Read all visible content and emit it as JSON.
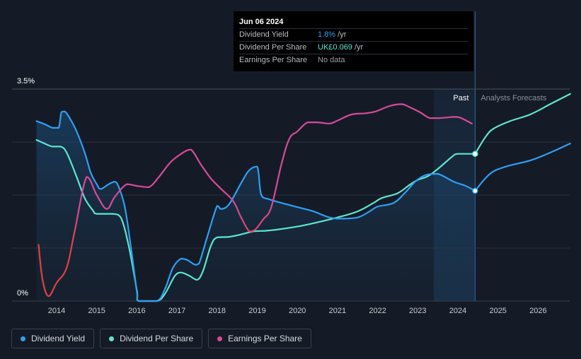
{
  "tooltip": {
    "date": "Jun 06 2024",
    "rows": [
      {
        "label": "Dividend Yield",
        "value": "1.8%",
        "unit": " /yr"
      },
      {
        "label": "Dividend Per Share",
        "value": "UK£0.069",
        "unit": " /yr"
      },
      {
        "label": "Earnings Per Share",
        "value": "No data",
        "unit": ""
      }
    ]
  },
  "legend": [
    {
      "label": "Dividend Yield",
      "color": "#2f9ff2"
    },
    {
      "label": "Dividend Per Share",
      "color": "#5de6cf"
    },
    {
      "label": "Earnings Per Share",
      "color": "#d64a9a"
    }
  ],
  "chart_data": {
    "type": "line",
    "y_top_label": "3.5%",
    "y_bottom_label": "0%",
    "ylim": [
      0,
      3.5
    ],
    "xlim": [
      2013.3,
      2026.8
    ],
    "x_ticks": [
      2014,
      2015,
      2016,
      2017,
      2018,
      2019,
      2020,
      2021,
      2022,
      2023,
      2024,
      2025,
      2026
    ],
    "past_label": "Past",
    "forecast_label": "Analysts Forecasts",
    "forecast_start": 2023.4,
    "cursor_x": 2024.43,
    "colors": {
      "yield": "#2f9ff2",
      "dps": "#5de6cf",
      "eps": "#d64a9a",
      "eps_low": "#e0403f"
    },
    "series": [
      {
        "name": "Dividend Yield",
        "key": "yield",
        "points": [
          [
            2013.5,
            2.97
          ],
          [
            2013.7,
            2.92
          ],
          [
            2013.9,
            2.86
          ],
          [
            2014.05,
            2.86
          ],
          [
            2014.12,
            3.12
          ],
          [
            2014.2,
            3.13
          ],
          [
            2014.3,
            3.05
          ],
          [
            2014.5,
            2.8
          ],
          [
            2014.7,
            2.45
          ],
          [
            2014.85,
            2.12
          ],
          [
            2015.0,
            1.93
          ],
          [
            2015.1,
            1.85
          ],
          [
            2015.3,
            1.93
          ],
          [
            2015.45,
            1.97
          ],
          [
            2015.55,
            1.88
          ],
          [
            2015.7,
            1.55
          ],
          [
            2015.85,
            0.9
          ],
          [
            2016.0,
            0.15
          ],
          [
            2016.05,
            0.0
          ],
          [
            2016.5,
            0.0
          ],
          [
            2016.7,
            0.2
          ],
          [
            2016.9,
            0.55
          ],
          [
            2017.1,
            0.7
          ],
          [
            2017.25,
            0.68
          ],
          [
            2017.45,
            0.6
          ],
          [
            2017.55,
            0.62
          ],
          [
            2017.75,
            1.05
          ],
          [
            2018.0,
            1.57
          ],
          [
            2018.1,
            1.52
          ],
          [
            2018.3,
            1.6
          ],
          [
            2018.6,
            1.95
          ],
          [
            2018.8,
            2.16
          ],
          [
            2019.0,
            2.22
          ],
          [
            2019.1,
            1.75
          ],
          [
            2019.3,
            1.68
          ],
          [
            2019.6,
            1.62
          ],
          [
            2020.0,
            1.55
          ],
          [
            2020.4,
            1.48
          ],
          [
            2020.8,
            1.38
          ],
          [
            2021.1,
            1.36
          ],
          [
            2021.5,
            1.38
          ],
          [
            2021.8,
            1.48
          ],
          [
            2022.0,
            1.56
          ],
          [
            2022.4,
            1.62
          ],
          [
            2022.7,
            1.8
          ],
          [
            2022.95,
            1.98
          ],
          [
            2023.2,
            2.08
          ],
          [
            2023.5,
            2.1
          ],
          [
            2023.9,
            1.97
          ],
          [
            2024.2,
            1.9
          ],
          [
            2024.43,
            1.82
          ]
        ]
      },
      {
        "name": "Dividend Yield (forecast)",
        "key": "yield",
        "forecast": true,
        "points": [
          [
            2024.43,
            1.82
          ],
          [
            2024.8,
            2.1
          ],
          [
            2025.2,
            2.22
          ],
          [
            2025.8,
            2.32
          ],
          [
            2026.3,
            2.45
          ],
          [
            2026.8,
            2.6
          ]
        ]
      },
      {
        "name": "Dividend Per Share",
        "key": "dps",
        "points": [
          [
            2013.5,
            2.66
          ],
          [
            2013.7,
            2.6
          ],
          [
            2013.9,
            2.55
          ],
          [
            2014.1,
            2.55
          ],
          [
            2014.25,
            2.45
          ],
          [
            2014.5,
            2.05
          ],
          [
            2014.7,
            1.7
          ],
          [
            2014.9,
            1.5
          ],
          [
            2015.0,
            1.44
          ],
          [
            2015.4,
            1.44
          ],
          [
            2015.6,
            1.38
          ],
          [
            2015.8,
            0.9
          ],
          [
            2016.0,
            0.18
          ],
          [
            2016.05,
            0.0
          ],
          [
            2016.5,
            0.0
          ],
          [
            2016.7,
            0.12
          ],
          [
            2016.95,
            0.42
          ],
          [
            2017.1,
            0.47
          ],
          [
            2017.3,
            0.42
          ],
          [
            2017.5,
            0.35
          ],
          [
            2017.65,
            0.5
          ],
          [
            2017.85,
            0.92
          ],
          [
            2018.0,
            1.05
          ],
          [
            2018.3,
            1.06
          ],
          [
            2018.6,
            1.1
          ],
          [
            2018.9,
            1.15
          ],
          [
            2019.2,
            1.16
          ],
          [
            2019.5,
            1.18
          ],
          [
            2020.0,
            1.23
          ],
          [
            2020.5,
            1.3
          ],
          [
            2021.0,
            1.38
          ],
          [
            2021.5,
            1.48
          ],
          [
            2021.9,
            1.62
          ],
          [
            2022.1,
            1.7
          ],
          [
            2022.5,
            1.78
          ],
          [
            2022.8,
            1.92
          ],
          [
            2023.0,
            2.0
          ],
          [
            2023.25,
            2.06
          ],
          [
            2023.5,
            2.18
          ],
          [
            2023.85,
            2.38
          ],
          [
            2024.0,
            2.43
          ],
          [
            2024.43,
            2.43
          ]
        ]
      },
      {
        "name": "Dividend Per Share (forecast)",
        "key": "dps",
        "forecast": true,
        "points": [
          [
            2024.43,
            2.43
          ],
          [
            2024.7,
            2.72
          ],
          [
            2024.9,
            2.85
          ],
          [
            2025.3,
            2.97
          ],
          [
            2025.8,
            3.08
          ],
          [
            2026.3,
            3.25
          ],
          [
            2026.8,
            3.42
          ]
        ]
      },
      {
        "name": "Earnings Per Share",
        "key": "eps",
        "points": [
          [
            2013.55,
            0.93
          ],
          [
            2013.65,
            0.35
          ],
          [
            2013.8,
            0.08
          ],
          [
            2014.0,
            0.3
          ],
          [
            2014.25,
            0.55
          ],
          [
            2014.45,
            1.15
          ],
          [
            2014.75,
            2.05
          ],
          [
            2015.0,
            1.75
          ],
          [
            2015.25,
            1.52
          ],
          [
            2015.45,
            1.72
          ],
          [
            2015.75,
            1.93
          ],
          [
            2016.0,
            1.9
          ],
          [
            2016.3,
            1.88
          ],
          [
            2016.55,
            2.05
          ],
          [
            2016.85,
            2.3
          ],
          [
            2017.15,
            2.45
          ],
          [
            2017.35,
            2.5
          ],
          [
            2017.6,
            2.25
          ],
          [
            2017.85,
            2.02
          ],
          [
            2018.1,
            1.85
          ],
          [
            2018.4,
            1.65
          ],
          [
            2018.6,
            1.38
          ],
          [
            2018.8,
            1.15
          ],
          [
            2018.95,
            1.18
          ],
          [
            2019.15,
            1.35
          ],
          [
            2019.35,
            1.55
          ],
          [
            2019.6,
            2.25
          ],
          [
            2019.8,
            2.68
          ],
          [
            2020.0,
            2.8
          ],
          [
            2020.25,
            2.95
          ],
          [
            2020.5,
            2.95
          ],
          [
            2020.8,
            2.93
          ],
          [
            2021.0,
            2.98
          ],
          [
            2021.35,
            3.08
          ],
          [
            2021.7,
            3.1
          ],
          [
            2021.95,
            3.13
          ],
          [
            2022.3,
            3.22
          ],
          [
            2022.6,
            3.25
          ],
          [
            2022.8,
            3.2
          ],
          [
            2023.05,
            3.12
          ],
          [
            2023.3,
            3.02
          ],
          [
            2023.55,
            3.02
          ],
          [
            2023.9,
            3.04
          ],
          [
            2024.05,
            3.03
          ],
          [
            2024.35,
            2.93
          ]
        ]
      }
    ]
  }
}
